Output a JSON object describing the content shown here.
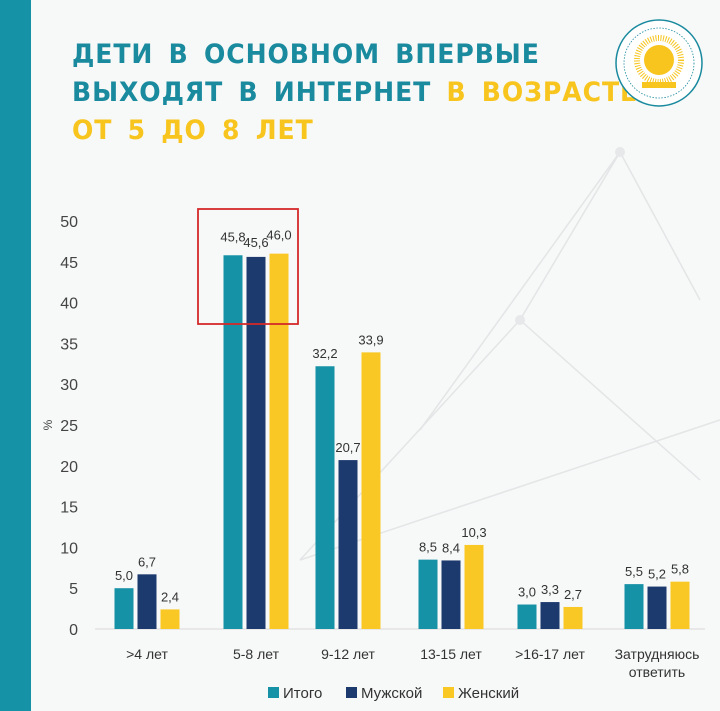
{
  "title": {
    "line1": "ДЕТИ В ОСНОВНОМ ВПЕРВЫЕ",
    "line2_a": "ВЫХОДЯТ В ИНТЕРНЕТ",
    "line2_b": "В ВОЗРАСТЕ",
    "line3": "ОТ 5 ДО 8 ЛЕТ"
  },
  "colors": {
    "teal": "#1592a6",
    "navy": "#1d3a6e",
    "yellow": "#f9c824",
    "highlight": "#d42a2a",
    "title_teal": "#1a8a9e",
    "title_yellow": "#f7c51e"
  },
  "chart_data": {
    "type": "bar",
    "title": "Дети в основном впервые выходят в интернет в возрасте от 5 до 8 лет",
    "xlabel": "",
    "ylabel": "%",
    "ylim": [
      0,
      50
    ],
    "yticks": [
      0,
      5,
      10,
      15,
      20,
      25,
      30,
      35,
      40,
      45,
      50
    ],
    "categories": [
      ">4 лет",
      "5-8 лет",
      "9-12 лет",
      "13-15 лет",
      ">16-17 лет",
      "Затрудняюсь ответить"
    ],
    "series": [
      {
        "name": "Итого",
        "color": "#1592a6",
        "values": [
          5.0,
          45.8,
          32.2,
          8.5,
          3.0,
          5.5
        ],
        "labels": [
          "5,0",
          "45,8",
          "32,2",
          "8,5",
          "3,0",
          "5,5"
        ]
      },
      {
        "name": "Мужской",
        "color": "#1d3a6e",
        "values": [
          6.7,
          45.6,
          20.7,
          8.4,
          3.3,
          5.2
        ],
        "labels": [
          "6,7",
          "45,6",
          "20,7",
          "8,4",
          "3,3",
          "5,2"
        ]
      },
      {
        "name": "Женский",
        "color": "#f9c824",
        "values": [
          2.4,
          46.0,
          33.9,
          10.3,
          2.7,
          5.8
        ],
        "labels": [
          "2,4",
          "46,0",
          "33,9",
          "10,3",
          "2,7",
          "5,8"
        ]
      }
    ],
    "legend": "bottom-center",
    "highlighted_category": "5-8 лет",
    "grid": false
  }
}
